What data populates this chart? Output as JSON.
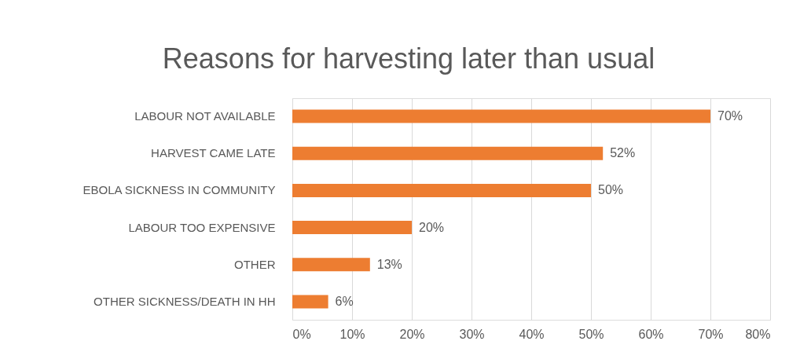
{
  "chart_data": {
    "type": "bar",
    "orientation": "horizontal",
    "title": "Reasons for harvesting later than usual",
    "categories": [
      "LABOUR NOT AVAILABLE",
      "HARVEST CAME LATE",
      "EBOLA SICKNESS IN COMMUNITY",
      "LABOUR TOO EXPENSIVE",
      "OTHER",
      "OTHER SICKNESS/DEATH IN HH"
    ],
    "values": [
      70,
      52,
      50,
      20,
      13,
      6
    ],
    "value_labels": [
      "70%",
      "52%",
      "50%",
      "20%",
      "13%",
      "6%"
    ],
    "color": "#ed7d31",
    "xlim": [
      0,
      80
    ],
    "xticks": [
      {
        "value": 0,
        "label": "0%"
      },
      {
        "value": 10,
        "label": "10%"
      },
      {
        "value": 20,
        "label": "20%"
      },
      {
        "value": 30,
        "label": "30%"
      },
      {
        "value": 40,
        "label": "40%"
      },
      {
        "value": 50,
        "label": "50%"
      },
      {
        "value": 60,
        "label": "60%"
      },
      {
        "value": 70,
        "label": "70%"
      },
      {
        "value": 80,
        "label": "80%"
      }
    ],
    "grid": "x"
  }
}
